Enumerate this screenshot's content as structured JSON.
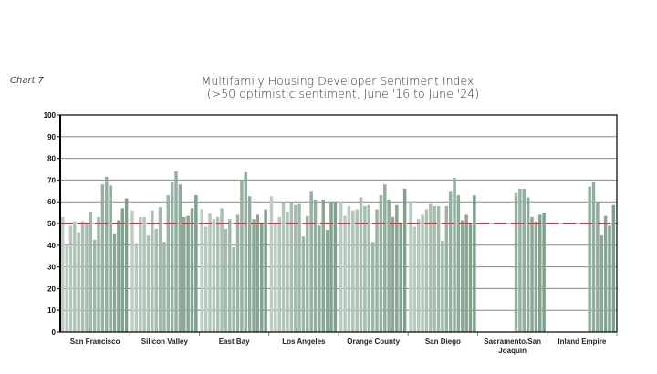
{
  "chart_label": "Chart 7",
  "chart_data": {
    "type": "bar",
    "title": "Multifamily Housing Developer Sentiment Index",
    "subtitle": "(>50 optimistic sentiment, June '16 to June '24)",
    "xlabel": "",
    "ylabel": "",
    "ylim": [
      0,
      100
    ],
    "yticks": [
      0,
      10,
      20,
      30,
      40,
      50,
      60,
      70,
      80,
      90,
      100
    ],
    "grid": true,
    "reference_line": {
      "value": 50,
      "color": "#c0424a",
      "style": "dashed"
    },
    "colors": {
      "early": "#bccdc2",
      "late": "#7da18c"
    },
    "categories": [
      {
        "label": [
          "San Francisco"
        ],
        "values": [
          53,
          40,
          49,
          51,
          46,
          51,
          50.5,
          55.5,
          42.5,
          53,
          68,
          71.5,
          67.5,
          45.5,
          51.5,
          57,
          61.5
        ]
      },
      {
        "label": [
          "Silicon Valley"
        ],
        "values": [
          56,
          41,
          53,
          53,
          44.5,
          56,
          47.5,
          57.5,
          41.5,
          63,
          69,
          74,
          68,
          53,
          53.5,
          57,
          63
        ]
      },
      {
        "label": [
          "East Bay"
        ],
        "values": [
          56.5,
          48.5,
          54.5,
          52,
          53,
          57,
          47.5,
          52,
          39,
          54,
          70,
          73.5,
          62.5,
          52,
          54,
          50,
          56.5
        ]
      },
      {
        "label": [
          "Los Angeles"
        ],
        "values": [
          62.5,
          50,
          53,
          60,
          55.5,
          60,
          58.5,
          59,
          44,
          53.5,
          65,
          61,
          49,
          61,
          47,
          60,
          60
        ]
      },
      {
        "label": [
          "Orange County"
        ],
        "values": [
          60,
          53.5,
          58,
          56,
          56.5,
          62,
          58,
          58.5,
          41.5,
          56.5,
          63,
          68,
          61,
          53,
          58.5,
          50,
          66
        ]
      },
      {
        "label": [
          "San Diego"
        ],
        "values": [
          60,
          48.5,
          52,
          54,
          56.5,
          59,
          58,
          58,
          42,
          58,
          65,
          71,
          63,
          51.5,
          54,
          50,
          63
        ]
      },
      {
        "label": [
          "Sacramento/San",
          "Joaquin"
        ],
        "values": [
          64,
          66,
          66,
          62,
          53,
          51,
          54,
          55
        ]
      },
      {
        "label": [
          "Inland Empire"
        ],
        "values": [
          67,
          69,
          60,
          44.5,
          53.5,
          49,
          58.5
        ]
      }
    ]
  }
}
